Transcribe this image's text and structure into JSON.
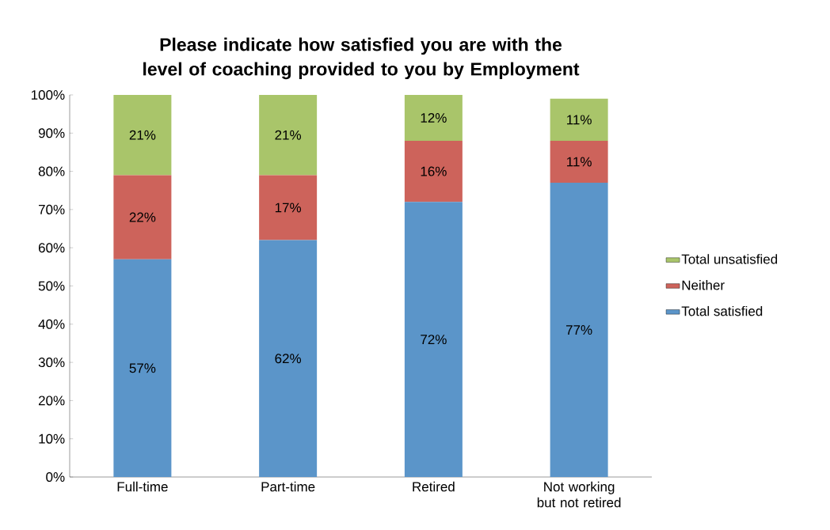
{
  "chart_data": {
    "type": "bar",
    "stacked": true,
    "title": "Please indicate how satisfied you are with the level of coaching provided to you by Employment",
    "categories": [
      "Full-time",
      "Part-time",
      "Retired",
      "Not working but not retired"
    ],
    "series": [
      {
        "name": "Total satisfied",
        "color": "#5b95c9",
        "values": [
          57,
          62,
          72,
          77
        ],
        "value_labels": [
          "57%",
          "62%",
          "72%",
          "77%"
        ]
      },
      {
        "name": "Neither",
        "color": "#cd635b",
        "values": [
          22,
          17,
          16,
          11
        ],
        "value_labels": [
          "22%",
          "17%",
          "16%",
          "11%"
        ]
      },
      {
        "name": "Total unsatisfied",
        "color": "#a9c56a",
        "values": [
          21,
          21,
          12,
          11
        ],
        "value_labels": [
          "21%",
          "21%",
          "12%",
          "11%"
        ]
      }
    ],
    "ylim": [
      0,
      100
    ],
    "yticks": [
      {
        "value": 0,
        "label": "0%"
      },
      {
        "value": 10,
        "label": "10%"
      },
      {
        "value": 20,
        "label": "20%"
      },
      {
        "value": 30,
        "label": "30%"
      },
      {
        "value": 40,
        "label": "40%"
      },
      {
        "value": 50,
        "label": "50%"
      },
      {
        "value": 60,
        "label": "60%"
      },
      {
        "value": 70,
        "label": "70%"
      },
      {
        "value": 80,
        "label": "80%"
      },
      {
        "value": 90,
        "label": "90%"
      },
      {
        "value": 100,
        "label": "100%"
      }
    ],
    "legend": "right",
    "grid": false
  }
}
